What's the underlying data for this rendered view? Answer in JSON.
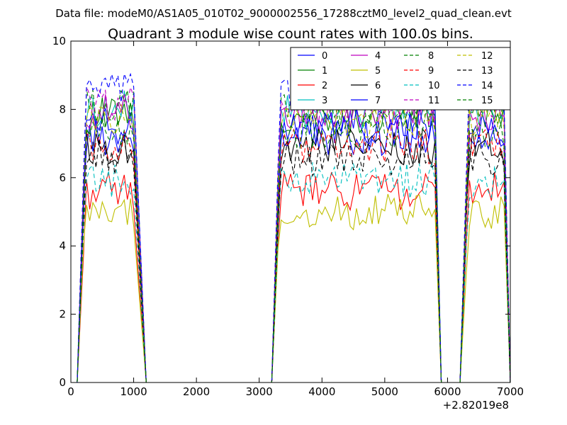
{
  "header": {
    "file_label": "Data file: modeM0/AS1A05_010T02_9000002556_17288cztM0_level2_quad_clean.evt"
  },
  "chart_data": {
    "type": "line",
    "title": "Quadrant 3 module wise count rates with 100.0s bins.",
    "xlabel": "",
    "ylabel": "",
    "x_offset_label": "+2.82019e8",
    "xlim": [
      0,
      7000
    ],
    "ylim": [
      0,
      10
    ],
    "x_ticks": [
      0,
      1000,
      2000,
      3000,
      4000,
      5000,
      6000,
      7000
    ],
    "x_tick_labels": [
      "0",
      "1000",
      "2000",
      "3000",
      "4000",
      "5000",
      "6000",
      "7000"
    ],
    "y_ticks": [
      0,
      2,
      4,
      6,
      8,
      10
    ],
    "y_tick_labels": [
      "0",
      "2",
      "4",
      "6",
      "8",
      "10"
    ],
    "grid": false,
    "legend_position": "top-right",
    "legend_columns": 4,
    "segments": [
      {
        "x_start": 200,
        "x_end": 1000,
        "edge_in": 100,
        "edge_out": 1200
      },
      {
        "x_start": 3300,
        "x_end": 5800,
        "edge_in": 3200,
        "edge_out": 5900
      },
      {
        "x_start": 6300,
        "x_end": 6900,
        "edge_in": 6200,
        "edge_out": 7000
      }
    ],
    "series": [
      {
        "name": "0",
        "color": "#0000ff",
        "dash": "solid",
        "level": 7.2
      },
      {
        "name": "1",
        "color": "#008000",
        "dash": "solid",
        "level": 7.8
      },
      {
        "name": "2",
        "color": "#ff0000",
        "dash": "solid",
        "level": 5.6
      },
      {
        "name": "3",
        "color": "#00bfbf",
        "dash": "solid",
        "level": 8.0
      },
      {
        "name": "4",
        "color": "#bf00bf",
        "dash": "solid",
        "level": 7.9
      },
      {
        "name": "5",
        "color": "#bfbf00",
        "dash": "solid",
        "level": 5.0
      },
      {
        "name": "6",
        "color": "#000000",
        "dash": "solid",
        "level": 6.9
      },
      {
        "name": "7",
        "color": "#0000ff",
        "dash": "solid",
        "level": 7.5
      },
      {
        "name": "8",
        "color": "#008000",
        "dash": "dashed",
        "level": 8.1
      },
      {
        "name": "9",
        "color": "#ff0000",
        "dash": "dashed",
        "level": 6.9
      },
      {
        "name": "10",
        "color": "#00bfbf",
        "dash": "dashed",
        "level": 5.9
      },
      {
        "name": "11",
        "color": "#bf00bf",
        "dash": "dashed",
        "level": 8.2
      },
      {
        "name": "12",
        "color": "#bfbf00",
        "dash": "dashed",
        "level": 7.7
      },
      {
        "name": "13",
        "color": "#000000",
        "dash": "dashed",
        "level": 6.6
      },
      {
        "name": "14",
        "color": "#0000ff",
        "dash": "dashed",
        "level": 8.5
      },
      {
        "name": "15",
        "color": "#008000",
        "dash": "dashed",
        "level": 7.4
      }
    ]
  }
}
